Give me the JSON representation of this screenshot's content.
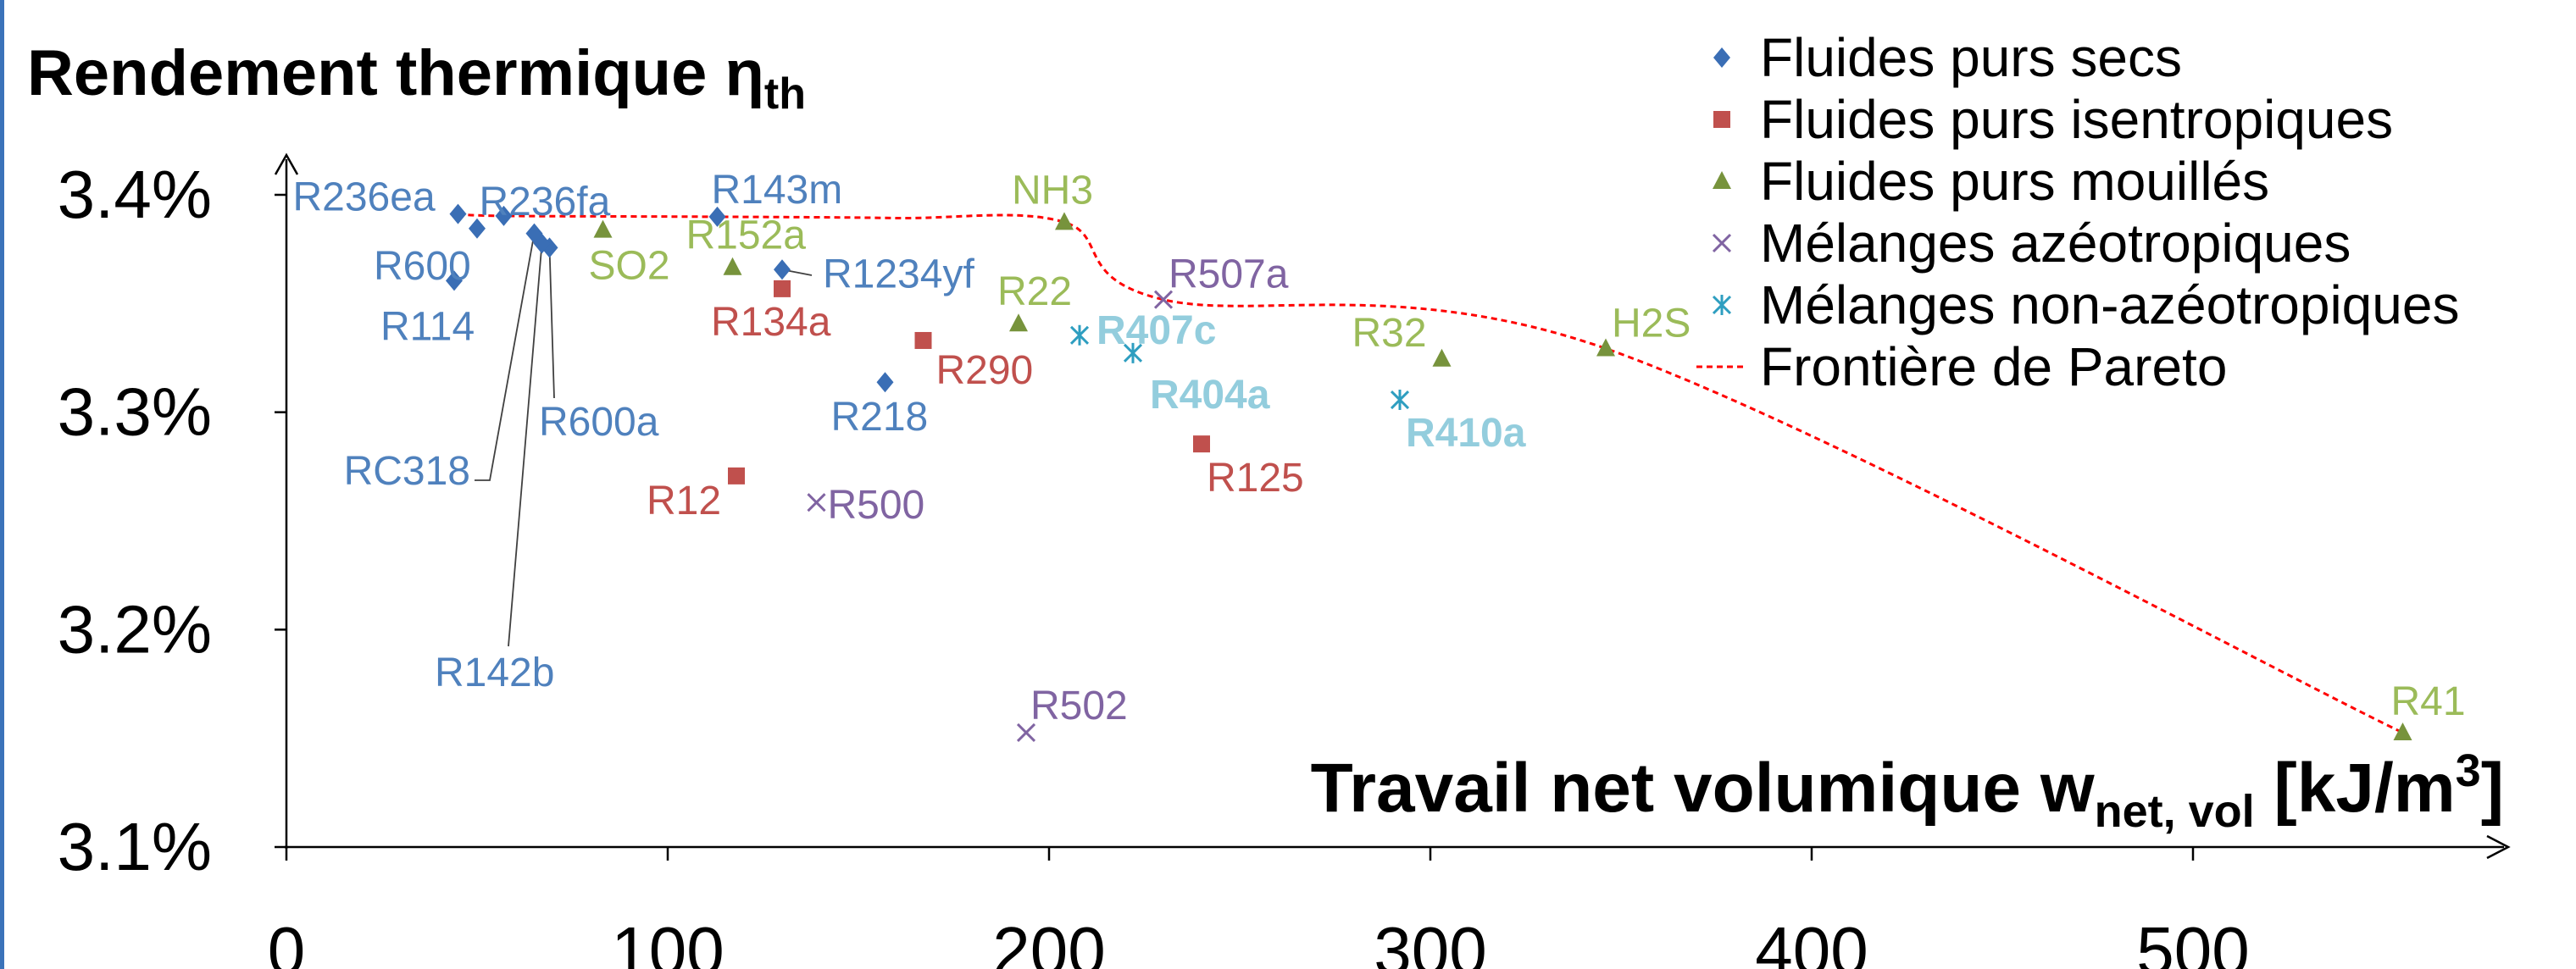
{
  "chart_data": {
    "type": "scatter",
    "title": "Rendement thermique η",
    "title_sub": "th",
    "xlabel_main": "Travail net volumique w",
    "xlabel_sub": "net, vol",
    "xlabel_unit": "[kJ/m",
    "xlabel_sup": "3",
    "xlabel_close": "]",
    "xlim": [
      0,
      580
    ],
    "ylim": [
      3.1,
      3.4
    ],
    "x_ticks": [
      0,
      100,
      200,
      300,
      400,
      500
    ],
    "x_tick_labels": [
      "0",
      "100",
      "200",
      "300",
      "400",
      "500"
    ],
    "y_ticks": [
      3.1,
      3.2,
      3.3,
      3.4
    ],
    "y_tick_labels": [
      "3.1%",
      "3.2%",
      "3.3%",
      "3.4%"
    ],
    "grid": false,
    "legend_position": "top-right",
    "series": [
      {
        "name": "Fluides purs secs",
        "marker": "diamond",
        "color": "#3A6EB5",
        "label_color": "#4F81BD",
        "points": [
          {
            "label": "R236ea",
            "x": 45,
            "y": 3.3912
          },
          {
            "label": "R600",
            "x": 50,
            "y": 3.3845
          },
          {
            "label": "R114",
            "x": 44,
            "y": 3.3605
          },
          {
            "label": "R236fa",
            "x": 57,
            "y": 3.3903
          },
          {
            "label": "RC318",
            "x": 65,
            "y": 3.3822
          },
          {
            "label": "R600a",
            "x": 69,
            "y": 3.3757
          },
          {
            "label": "R142b",
            "x": 67,
            "y": 3.3776
          },
          {
            "label": "R143m",
            "x": 113,
            "y": 3.3899
          },
          {
            "label": "R1234yf",
            "x": 130,
            "y": 3.3656
          },
          {
            "label": "R218",
            "x": 157,
            "y": 3.3138
          }
        ]
      },
      {
        "name": "Fluides purs isentropiques",
        "marker": "square",
        "color": "#C0504D",
        "label_color": "#C0504D",
        "points": [
          {
            "label": "R134a",
            "x": 130,
            "y": 3.3568
          },
          {
            "label": "R12",
            "x": 118,
            "y": 3.2707
          },
          {
            "label": "R290",
            "x": 167,
            "y": 3.333
          },
          {
            "label": "R125",
            "x": 240,
            "y": 3.2854
          }
        ]
      },
      {
        "name": "Fluides purs mouillés",
        "marker": "triangle",
        "color": "#77933C",
        "label_color": "#9BBB59",
        "points": [
          {
            "label": "SO2",
            "x": 83,
            "y": 3.3838
          },
          {
            "label": "R152a",
            "x": 117,
            "y": 3.3666
          },
          {
            "label": "R22",
            "x": 192,
            "y": 3.3407
          },
          {
            "label": "NH3",
            "x": 204,
            "y": 3.3874
          },
          {
            "label": "R32",
            "x": 303,
            "y": 3.3245
          },
          {
            "label": "H2S",
            "x": 346,
            "y": 3.3293
          },
          {
            "label": "R41",
            "x": 555,
            "y": 3.1526
          }
        ]
      },
      {
        "name": "Mélanges azéotropiques",
        "marker": "x",
        "color": "#8064A2",
        "label_color": "#8064A2",
        "points": [
          {
            "label": "R500",
            "x": 139,
            "y": 3.2585
          },
          {
            "label": "R507a",
            "x": 230,
            "y": 3.3518
          },
          {
            "label": "R502",
            "x": 194,
            "y": 3.1526
          }
        ]
      },
      {
        "name": "Mélanges non-azéotropiques",
        "marker": "asterisk",
        "color": "#2E9EC0",
        "label_color": "#93CDDD",
        "points": [
          {
            "label": "R407c",
            "x": 208,
            "y": 3.3354
          },
          {
            "label": "R404a",
            "x": 222,
            "y": 3.3272
          },
          {
            "label": "R410a",
            "x": 292,
            "y": 3.3057
          }
        ]
      }
    ],
    "pareto": {
      "name": "Frontière de Pareto",
      "color": "#FF0000",
      "points": [
        {
          "x": 45,
          "y": 3.3912
        },
        {
          "x": 57,
          "y": 3.3903
        },
        {
          "x": 113,
          "y": 3.3899
        },
        {
          "x": 160,
          "y": 3.3893
        },
        {
          "x": 204,
          "y": 3.3874
        },
        {
          "x": 230,
          "y": 3.3518
        },
        {
          "x": 346,
          "y": 3.3293
        },
        {
          "x": 555,
          "y": 3.1526
        }
      ]
    }
  }
}
